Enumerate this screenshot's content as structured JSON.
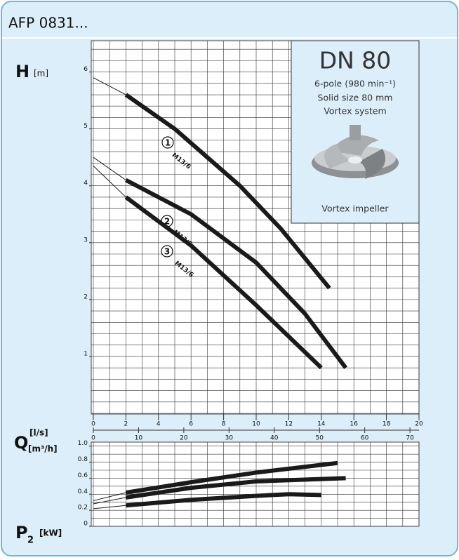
{
  "title": "AFP 0831...",
  "inset": {
    "heading": "DN 80",
    "lines": [
      "6-pole (980 min⁻¹)",
      "Solid size 80 mm",
      "Vortex system"
    ],
    "caption": "Vortex impeller"
  },
  "chart_data": [
    {
      "type": "line",
      "y_label": "H",
      "y_unit": "[m]",
      "x_label": "Q",
      "x_unit": "[l/s]",
      "x2_unit": "[m³/h]",
      "xlim": [
        0,
        20
      ],
      "xticks": [
        0,
        2,
        4,
        6,
        8,
        10,
        12,
        14,
        16,
        18,
        20
      ],
      "x2lim": [
        0,
        72
      ],
      "x2ticks": [
        0,
        10,
        20,
        30,
        40,
        50,
        60,
        70
      ],
      "ylim": [
        0,
        6.55
      ],
      "yticks": [
        1,
        2,
        3,
        4,
        5,
        6
      ],
      "grid": true,
      "xgrid_step": 1,
      "ygrid_step": 0.2,
      "thick_from": 2,
      "series": [
        {
          "name": "1",
          "label": "M13/6",
          "color": "#1a1a1a",
          "x": [
            0,
            2,
            5,
            7,
            9,
            11.5,
            14.5
          ],
          "values": [
            5.9,
            5.6,
            5.0,
            4.5,
            4.0,
            3.25,
            2.2
          ]
        },
        {
          "name": "2",
          "label": "M13/6",
          "color": "#1a1a1a",
          "x": [
            0,
            2,
            6,
            10,
            13,
            15.5
          ],
          "values": [
            4.5,
            4.1,
            3.5,
            2.65,
            1.75,
            0.8
          ]
        },
        {
          "name": "3",
          "label": "M13/6",
          "color": "#1a1a1a",
          "x": [
            0,
            2,
            6,
            10,
            14
          ],
          "values": [
            4.35,
            3.8,
            2.95,
            1.9,
            0.8
          ]
        }
      ]
    },
    {
      "type": "line",
      "y_label": "P",
      "y_sub": "2",
      "y_unit": "[kW]",
      "xlim": [
        0,
        20
      ],
      "ylim": [
        0,
        1.05
      ],
      "yticks": [
        0,
        0.2,
        0.4,
        0.6,
        0.8,
        {
          "value": 1,
          "label": "1.0"
        }
      ],
      "grid": true,
      "xgrid_step": 1,
      "ygrid_step": 0.1,
      "thick_from": 2,
      "series": [
        {
          "color": "#1a1a1a",
          "x": [
            0,
            2,
            6,
            10,
            15
          ],
          "values": [
            0.32,
            0.42,
            0.55,
            0.67,
            0.79
          ]
        },
        {
          "color": "#1a1a1a",
          "x": [
            0,
            2,
            6,
            10,
            15.5
          ],
          "values": [
            0.28,
            0.36,
            0.48,
            0.56,
            0.6
          ]
        },
        {
          "color": "#1a1a1a",
          "x": [
            0,
            2,
            6,
            10,
            12,
            14
          ],
          "values": [
            0.22,
            0.26,
            0.33,
            0.38,
            0.4,
            0.39
          ]
        }
      ]
    }
  ]
}
